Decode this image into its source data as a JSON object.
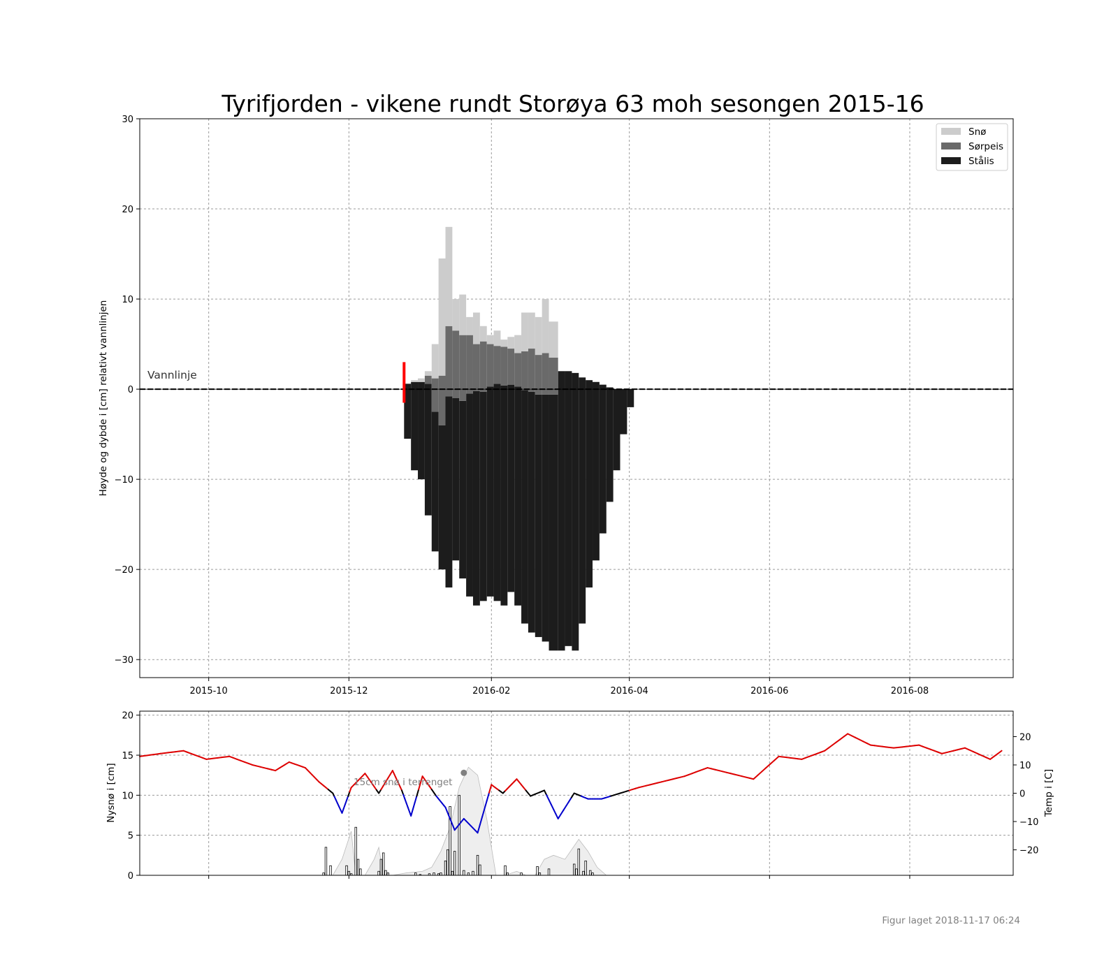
{
  "title": "Tyrifjorden - vikene rundt Storøya 63 moh sesongen 2015-16",
  "footer": "Figur laget 2018-11-17 06:24",
  "colors": {
    "snow": "#cccccc",
    "slush_ice": "#6a6a6a",
    "black_ice": "#1c1c1c",
    "temp_warm": "#dd0000",
    "temp_cold": "#0000cc",
    "temp_zero": "#000000",
    "snow_depth_fill": "#eeeeee",
    "obs_marker": "#ff0000"
  },
  "chart_data": [
    {
      "name": "ice-cover",
      "type": "area",
      "title": "Tyrifjorden - vikene rundt Storøya 63 moh sesongen 2015-16",
      "ylabel": "Høyde og dybde i [cm] relativt vannlinjen",
      "xlabel": "",
      "xlim": [
        "2015-09-01",
        "2016-09-15"
      ],
      "ylim": [
        -32,
        30
      ],
      "x_ticks": [
        "2015-10",
        "2015-12",
        "2016-02",
        "2016-04",
        "2016-06",
        "2016-08"
      ],
      "y_ticks": [
        -30,
        -20,
        -10,
        0,
        10,
        20,
        30
      ],
      "y_tick_labels": [
        "−30",
        "−20",
        "−10",
        "0",
        "10",
        "20",
        "30"
      ],
      "grid": true,
      "legend_position": "top-right",
      "legend": [
        "Snø",
        "Sørpeis",
        "Stålis"
      ],
      "waterline_label": "Vannlinje",
      "waterline_value": 0,
      "observation_marker": {
        "date": "2015-12-25",
        "from": -1.5,
        "to": 3
      },
      "series": {
        "dates": [
          "2015-12-25",
          "2015-12-28",
          "2015-12-31",
          "2016-01-03",
          "2016-01-06",
          "2016-01-09",
          "2016-01-12",
          "2016-01-15",
          "2016-01-18",
          "2016-01-21",
          "2016-01-24",
          "2016-01-27",
          "2016-01-30",
          "2016-02-02",
          "2016-02-05",
          "2016-02-08",
          "2016-02-11",
          "2016-02-14",
          "2016-02-17",
          "2016-02-20",
          "2016-02-23",
          "2016-02-26",
          "2016-03-01",
          "2016-03-04",
          "2016-03-07",
          "2016-03-10",
          "2016-03-13",
          "2016-03-16",
          "2016-03-19",
          "2016-03-22",
          "2016-03-25",
          "2016-03-28",
          "2016-03-31",
          "2016-04-03",
          "2016-04-06",
          "2016-04-09",
          "2016-04-12"
        ],
        "ice_bottom": [
          -5.5,
          -9,
          -10,
          -14,
          -18,
          -20,
          -22,
          -19,
          -21,
          -23,
          -24,
          -23.5,
          -23,
          -23.5,
          -24,
          -22.5,
          -24,
          -26,
          -27,
          -27.5,
          -28,
          -29,
          -29,
          -28.5,
          -29,
          -26,
          -22,
          -19,
          -16,
          -12.5,
          -9,
          -5,
          -2,
          0,
          0,
          0,
          0
        ],
        "slush_top": [
          0.6,
          0.8,
          0.8,
          0.6,
          -2.5,
          -4,
          -0.8,
          -1,
          -1.3,
          -0.5,
          -0.2,
          -0.3,
          0.3,
          0.6,
          0.4,
          0.5,
          0.3,
          -0.1,
          -0.3,
          -0.6,
          -0.6,
          -0.6,
          2,
          2,
          1.8,
          1.3,
          1,
          0.8,
          0.5,
          0.2,
          0,
          0,
          0,
          0,
          0,
          0,
          0
        ],
        "ice_top_height": [
          0.6,
          0.8,
          0.8,
          1.5,
          1.2,
          1.5,
          7,
          6.5,
          6,
          6,
          5,
          5.3,
          5,
          4.8,
          4.7,
          4.5,
          4,
          4.2,
          4.5,
          3.8,
          4,
          3.5,
          2,
          2,
          1.8,
          1.3,
          1,
          0.8,
          0.5,
          0.2,
          0,
          0,
          0,
          0,
          0,
          0,
          0
        ],
        "snow_top": [
          0.6,
          1,
          1.2,
          2,
          5,
          14.5,
          18,
          10,
          10.5,
          8,
          8.5,
          7,
          6,
          6.5,
          5.5,
          5.8,
          6,
          8.5,
          8.5,
          8,
          10,
          7.5,
          2,
          2,
          1.8,
          1.3,
          1,
          0.8,
          0.5,
          0.2,
          0,
          0,
          0,
          0,
          0,
          0,
          0
        ]
      }
    },
    {
      "name": "weather",
      "type": "line",
      "xlim": [
        "2015-09-01",
        "2016-09-15"
      ],
      "ylabel": "Nysnø i [cm]",
      "ylim": [
        0,
        20.5
      ],
      "y_ticks": [
        0,
        5,
        10,
        15,
        20
      ],
      "y2label": "Temp i [C]",
      "y2lim": [
        -29,
        29
      ],
      "y2_ticks": [
        -20,
        -10,
        0,
        10,
        20
      ],
      "y2_tick_labels": [
        "−20",
        "−10",
        "0",
        "10",
        "20"
      ],
      "grid": true,
      "annotation": "15cm snø i terrenget",
      "annotation_point": {
        "date": "2016-01-20",
        "value": 12.8
      },
      "temperature": {
        "dates": [
          "2015-09-01",
          "2015-09-10",
          "2015-09-20",
          "2015-09-30",
          "2015-10-10",
          "2015-10-20",
          "2015-10-30",
          "2015-11-05",
          "2015-11-12",
          "2015-11-18",
          "2015-11-24",
          "2015-11-28",
          "2015-12-02",
          "2015-12-08",
          "2015-12-14",
          "2015-12-20",
          "2015-12-24",
          "2015-12-28",
          "2016-01-02",
          "2016-01-08",
          "2016-01-12",
          "2016-01-16",
          "2016-01-20",
          "2016-01-26",
          "2016-02-01",
          "2016-02-06",
          "2016-02-12",
          "2016-02-18",
          "2016-02-24",
          "2016-03-01",
          "2016-03-08",
          "2016-03-14",
          "2016-03-20",
          "2016-03-28",
          "2016-04-05",
          "2016-04-15",
          "2016-04-25",
          "2016-05-05",
          "2016-05-15",
          "2016-05-25",
          "2016-06-05",
          "2016-06-15",
          "2016-06-25",
          "2016-07-05",
          "2016-07-15",
          "2016-07-25",
          "2016-08-05",
          "2016-08-15",
          "2016-08-25",
          "2016-09-05",
          "2016-09-10"
        ],
        "values": [
          13,
          14,
          15,
          12,
          13,
          10,
          8,
          11,
          9,
          4,
          0,
          -7,
          2,
          7,
          0,
          8,
          1,
          -8,
          6,
          -1,
          -5,
          -13,
          -9,
          -14,
          3,
          0,
          5,
          -1,
          1,
          -9,
          0,
          -2,
          -2,
          0,
          2,
          4,
          6,
          9,
          7,
          5,
          13,
          12,
          15,
          21,
          17,
          16,
          17,
          14,
          16,
          12,
          15
        ]
      },
      "snow_depth": {
        "dates": [
          "2015-11-24",
          "2015-11-28",
          "2015-12-02",
          "2015-12-04",
          "2015-12-08",
          "2015-12-12",
          "2015-12-14",
          "2015-12-16",
          "2015-12-18",
          "2015-12-20",
          "2015-12-26",
          "2016-01-02",
          "2016-01-06",
          "2016-01-10",
          "2016-01-14",
          "2016-01-18",
          "2016-01-22",
          "2016-01-26",
          "2016-01-30",
          "2016-02-03",
          "2016-02-07",
          "2016-02-12",
          "2016-02-16",
          "2016-02-20",
          "2016-02-24",
          "2016-02-28",
          "2016-03-04",
          "2016-03-10",
          "2016-03-14",
          "2016-03-18",
          "2016-03-22"
        ],
        "values": [
          0,
          2,
          5.5,
          0,
          0,
          2,
          3.5,
          0,
          0,
          0,
          0.3,
          0.5,
          1,
          3,
          6,
          11,
          13.5,
          12.5,
          7,
          0,
          0,
          0.5,
          0,
          0,
          2,
          2.5,
          2,
          4.5,
          3,
          1,
          0
        ]
      },
      "new_snow_bars": {
        "dates": [
          "2015-11-20",
          "2015-11-21",
          "2015-11-23",
          "2015-11-30",
          "2015-12-01",
          "2015-12-02",
          "2015-12-04",
          "2015-12-05",
          "2015-12-06",
          "2015-12-14",
          "2015-12-15",
          "2015-12-16",
          "2015-12-17",
          "2015-12-18",
          "2015-12-30",
          "2016-01-01",
          "2016-01-05",
          "2016-01-07",
          "2016-01-09",
          "2016-01-10",
          "2016-01-12",
          "2016-01-13",
          "2016-01-14",
          "2016-01-15",
          "2016-01-16",
          "2016-01-18",
          "2016-01-20",
          "2016-01-22",
          "2016-01-24",
          "2016-01-26",
          "2016-01-27",
          "2016-02-07",
          "2016-02-08",
          "2016-02-14",
          "2016-02-21",
          "2016-02-22",
          "2016-02-26",
          "2016-03-08",
          "2016-03-09",
          "2016-03-10",
          "2016-03-12",
          "2016-03-13",
          "2016-03-15",
          "2016-03-16"
        ],
        "values": [
          0.3,
          3.5,
          1.2,
          1.2,
          0.5,
          0.2,
          6,
          2,
          0.8,
          0.5,
          2,
          2.8,
          0.6,
          0.3,
          0.3,
          0.1,
          0.2,
          0.3,
          0.2,
          0.3,
          1.8,
          3.2,
          8.6,
          0.5,
          3,
          10,
          0.6,
          0.3,
          0.5,
          2.5,
          1.3,
          1.2,
          0.3,
          0.3,
          1.1,
          0.3,
          0.8,
          1.4,
          0.8,
          3.3,
          0.5,
          1.8,
          0.6,
          0.3
        ]
      }
    }
  ]
}
